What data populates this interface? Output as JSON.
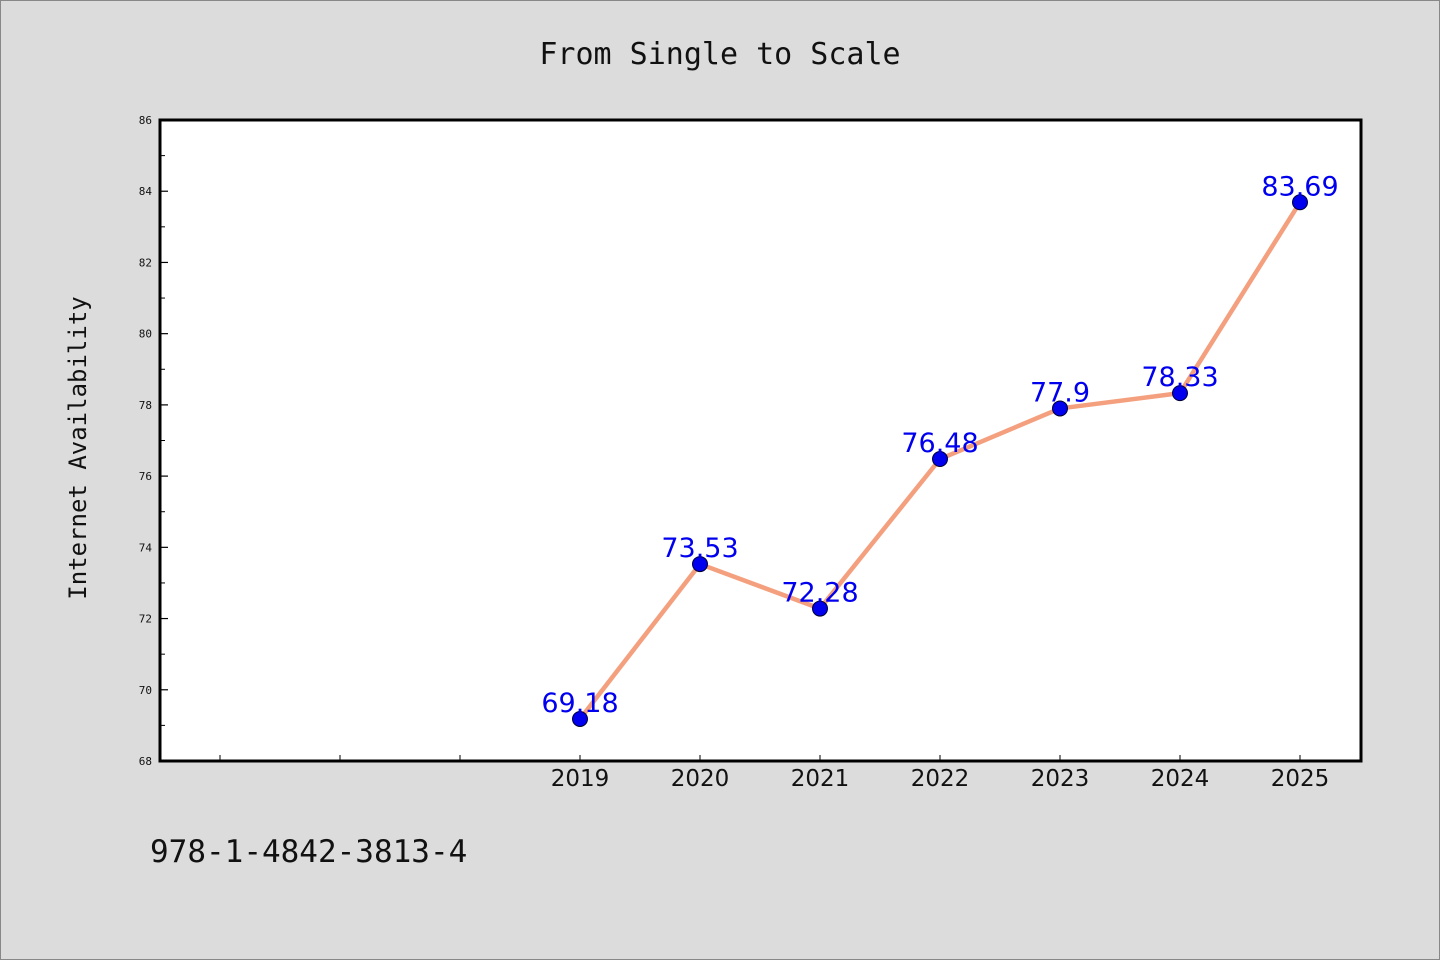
{
  "chart_data": {
    "type": "line",
    "title": "From Single to Scale",
    "xlabel": "",
    "ylabel": "Internet Availability",
    "categories": [
      "2019",
      "2020",
      "2021",
      "2022",
      "2023",
      "2024",
      "2025"
    ],
    "series": [
      {
        "values": [
          69.18,
          73.53,
          72.28,
          76.48,
          77.9,
          78.33,
          83.69
        ]
      }
    ],
    "data_labels": [
      "69.18",
      "73.53",
      "72.28",
      "76.48",
      "77.9",
      "78.33",
      "83.69"
    ],
    "ylim": [
      68,
      86
    ],
    "yticks": [
      68,
      70,
      72,
      74,
      76,
      78,
      80,
      82,
      84,
      86
    ],
    "grid": false,
    "line_color": "#f4a07e",
    "marker_color": "#0000ee",
    "label_color": "#0000ee",
    "background_color": "#dcdcdc",
    "plot_background": "#ffffff"
  },
  "footer": {
    "code": "978-1-4842-3813-4"
  }
}
